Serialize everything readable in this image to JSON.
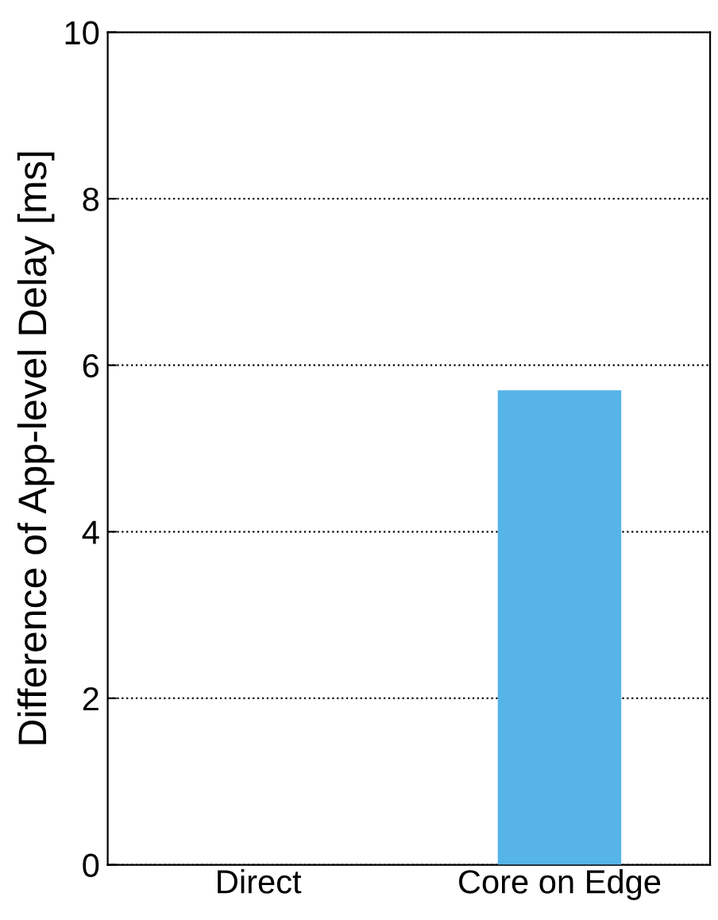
{
  "chart_data": {
    "type": "bar",
    "ylabel": "Difference of App-level Delay [ms]",
    "categories": [
      "Direct",
      "Core on Edge"
    ],
    "values": [
      0,
      5.7
    ],
    "color": "#56b4e8",
    "ylim": [
      0,
      10
    ],
    "yticks": [
      0,
      2,
      4,
      6,
      8,
      10
    ],
    "grid": "y"
  }
}
